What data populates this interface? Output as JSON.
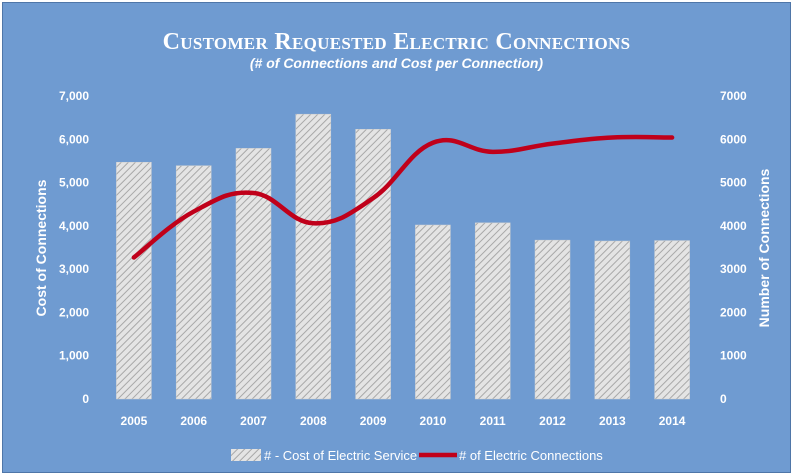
{
  "chart_data": {
    "type": "bar",
    "title": "Customer Requested Electric Connections",
    "subtitle": "(# of Connections and Cost per Connection)",
    "categories": [
      "2005",
      "2006",
      "2007",
      "2008",
      "2009",
      "2010",
      "2011",
      "2012",
      "2013",
      "2014"
    ],
    "ylabel": "Cost of Connections",
    "y2label": "Number of Connections",
    "ylim": [
      0,
      7000
    ],
    "y2lim": [
      0,
      7000
    ],
    "yticks": [
      "0",
      "1,000",
      "2,000",
      "3,000",
      "4,000",
      "5,000",
      "6,000",
      "7,000"
    ],
    "y2ticks": [
      "0",
      "1000",
      "2000",
      "3000",
      "4000",
      "5000",
      "6000",
      "7000"
    ],
    "series": [
      {
        "name": "# - Cost of Electric Service",
        "type": "bar",
        "axis": "left",
        "values": [
          5470,
          5390,
          5790,
          6580,
          6230,
          4020,
          4070,
          3670,
          3650,
          3660
        ]
      },
      {
        "name": "# of Electric Connections",
        "type": "line",
        "axis": "right",
        "values": [
          3270,
          4330,
          4760,
          4060,
          4640,
          5920,
          5710,
          5900,
          6040,
          6040
        ]
      }
    ],
    "grid": false,
    "legend": "bottom",
    "colors": {
      "background": "#6f9bd1",
      "bar_fill": "#e4e4e4",
      "bar_hatch": "#a8a8a8",
      "line": "#c0001a",
      "text": "#ffffff"
    }
  }
}
